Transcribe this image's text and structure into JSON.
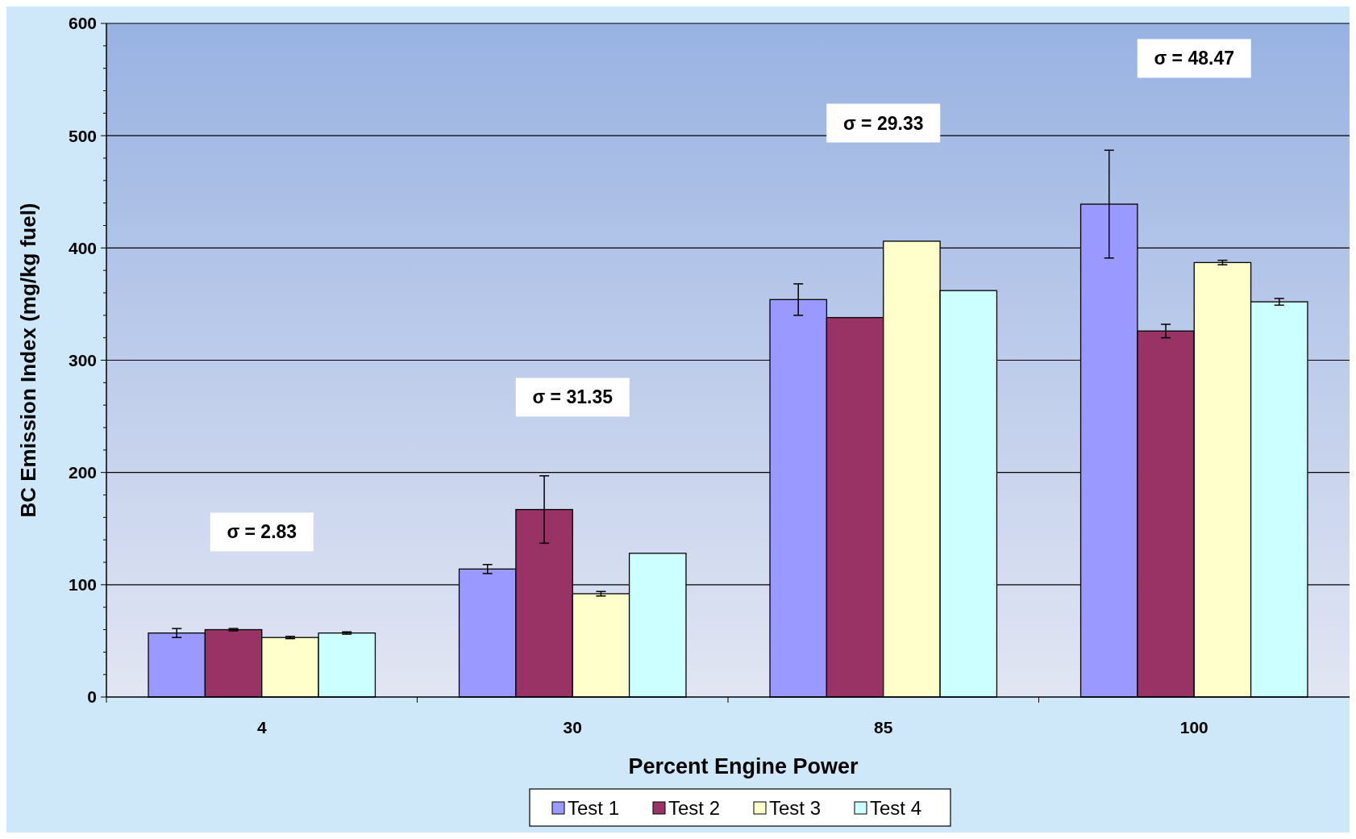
{
  "chart_data": {
    "type": "bar",
    "xlabel": "Percent Engine Power",
    "ylabel": "BC Emission Index (mg/kg fuel)",
    "categories": [
      "4",
      "30",
      "85",
      "100"
    ],
    "series": [
      {
        "name": "Test 1",
        "color": "#9999ff",
        "values": [
          57,
          114,
          354,
          439
        ],
        "errors": [
          4,
          4,
          14,
          48
        ]
      },
      {
        "name": "Test 2",
        "color": "#993366",
        "values": [
          60,
          167,
          338,
          326
        ],
        "errors": [
          1,
          30,
          null,
          6
        ]
      },
      {
        "name": "Test 3",
        "color": "#ffffcc",
        "values": [
          53,
          92,
          406,
          387
        ],
        "errors": [
          1,
          2,
          null,
          2
        ]
      },
      {
        "name": "Test 4",
        "color": "#ccffff",
        "values": [
          57,
          128,
          362,
          352
        ],
        "errors": [
          1,
          null,
          null,
          3
        ]
      }
    ],
    "ylim": [
      0,
      600
    ],
    "yticks": [
      0,
      {
        "value": 20,
        "label": null
      },
      {
        "value": 40,
        "label": null
      },
      {
        "value": 60,
        "label": null
      },
      {
        "value": 80,
        "label": null
      },
      100,
      {
        "value": 120,
        "label": null
      },
      {
        "value": 140,
        "label": null
      },
      {
        "value": 160,
        "label": null
      },
      {
        "value": 180,
        "label": null
      },
      200,
      {
        "value": 220,
        "label": null
      },
      {
        "value": 240,
        "label": null
      },
      {
        "value": 260,
        "label": null
      },
      {
        "value": 280,
        "label": null
      },
      300,
      {
        "value": 320,
        "label": null
      },
      {
        "value": 340,
        "label": null
      },
      {
        "value": 360,
        "label": null
      },
      {
        "value": 380,
        "label": null
      },
      400,
      {
        "value": 420,
        "label": null
      },
      {
        "value": 440,
        "label": null
      },
      {
        "value": 460,
        "label": null
      },
      {
        "value": 480,
        "label": null
      },
      500,
      {
        "value": 520,
        "label": null
      },
      {
        "value": 540,
        "label": null
      },
      {
        "value": 560,
        "label": null
      },
      {
        "value": 580,
        "label": null
      },
      600
    ],
    "grid": "y",
    "legend": "bottom",
    "annotations": [
      "σ = 2.83",
      "σ = 31.35",
      "σ = 29.33",
      "σ = 48.47"
    ]
  }
}
